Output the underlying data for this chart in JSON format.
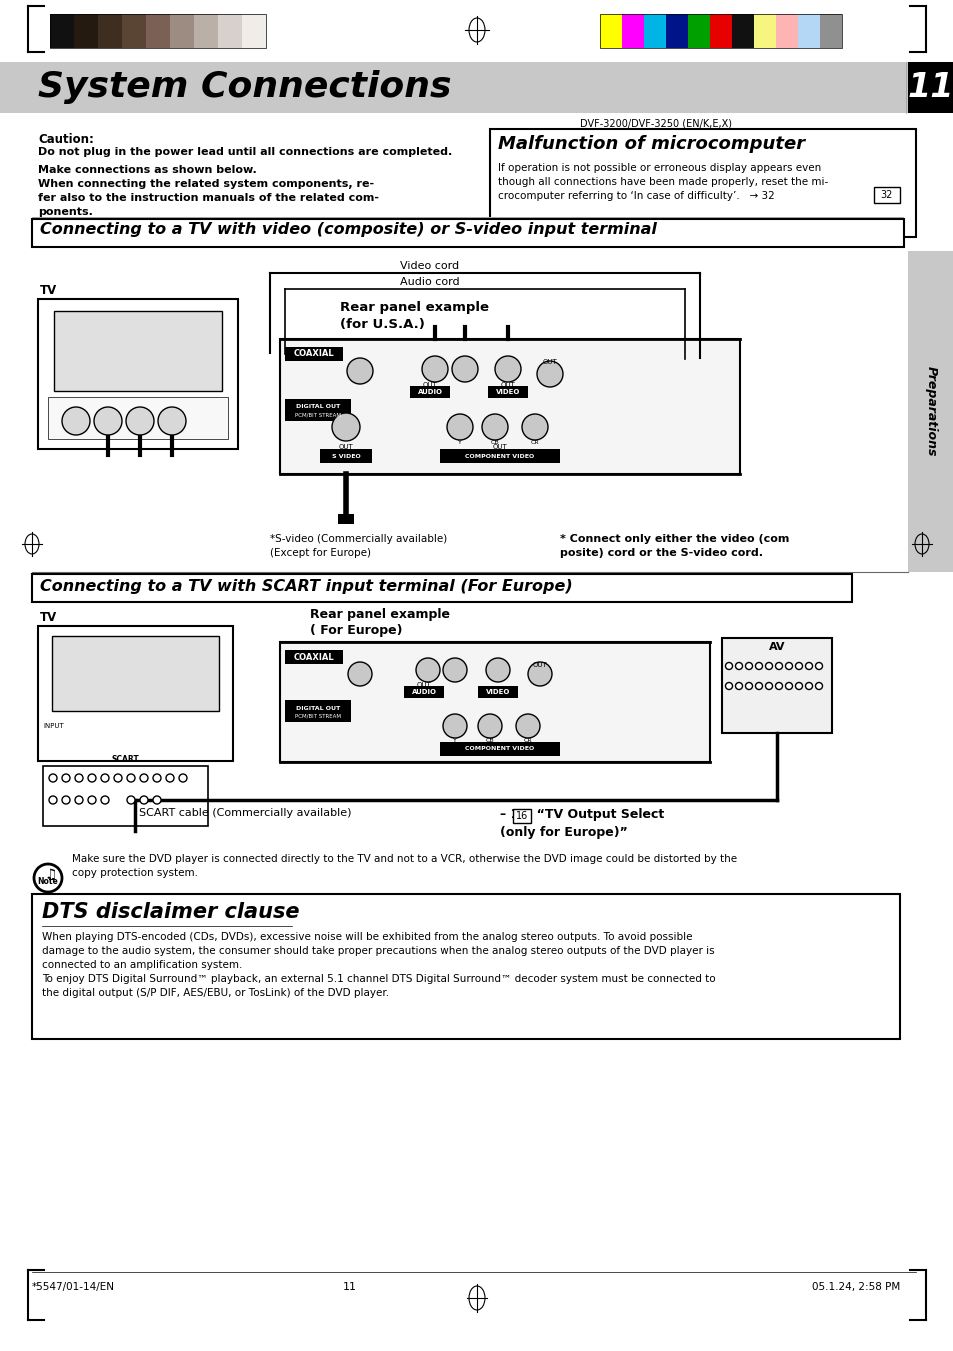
{
  "page_bg": "#ffffff",
  "header_bg": "#c8c8c8",
  "title_text": "System Connections",
  "page_number": "11",
  "model_text": "DVF-3200/DVF-3250 (EN/K,E,X)",
  "caution_title": "Caution:",
  "caution_line1": "Do not plug in the power lead until all connections are completed.",
  "caution_line2": "Make connections as shown below.",
  "caution_line3": "When connecting the related system components, re-",
  "caution_line4": "fer also to the instruction manuals of the related com-",
  "caution_line5": "ponents.",
  "malfunction_title": "Malfunction of microcomputer",
  "malfunction_text1": "If operation is not possible or erroneous display appears even",
  "malfunction_text2": "though all connections have been made properly, reset the mi-",
  "malfunction_text3": "crocomputer referring to ‘In case of difficulty’.   → 32",
  "sec1_title": "Connecting to a TV with video (composite) or S-video input terminal",
  "sec2_title": "Connecting to a TV with SCART input terminal (For Europe)",
  "video_cord": "Video cord",
  "audio_cord": "Audio cord",
  "tv_label": "TV",
  "rear_panel1a": "Rear panel example",
  "rear_panel1b": "(for U.S.A.)",
  "rear_panel2a": "Rear panel example",
  "rear_panel2b": "( For Europe)",
  "svideo_note1": "*S-video (Commercially available)",
  "svideo_note2": "(Except for Europe)",
  "connect_note1": "* Connect only either the video (com",
  "connect_note2": "posite) cord or the S-video cord.",
  "scart_label": "SCART cable (Commercially available)",
  "tv_out1": "– 16  “TV Output Select",
  "tv_out2": "(only for Europe)”",
  "note_text1": "Make sure the DVD player is connected directly to the TV and not to a VCR, otherwise the DVD image could be distorted by the",
  "note_text2": "copy protection system.",
  "dts_title": "DTS disclaimer clause",
  "dts1": "When playing DTS-encoded (CDs, DVDs), excessive noise will be exhibited from the analog stereo outputs. To avoid possible",
  "dts2": "damage to the audio system, the consumer should take proper precautions when the analog stereo outputs of the DVD player is",
  "dts3": "connected to an amplification system.",
  "dts4": "To enjoy DTS Digital Surround™ playback, an external 5.1 channel DTS Digital Surround™ decoder system must be connected to",
  "dts5": "the digital output (S/P DIF, AES/EBU, or TosLink) of the DVD player.",
  "footer_left": "*5547/01-14/EN",
  "footer_center": "11",
  "footer_right": "05.1.24, 2:58 PM",
  "preparations": "Preparations",
  "gray_bars_left": [
    "#111111",
    "#241a10",
    "#3d2e20",
    "#5a4535",
    "#7a6055",
    "#9c8c82",
    "#bab0a8",
    "#d8d0cc",
    "#f0ece8"
  ],
  "color_bars_right": [
    "#ffff00",
    "#ff00ff",
    "#00b4e6",
    "#001489",
    "#00a000",
    "#e60000",
    "#111111",
    "#f5f580",
    "#ffb4b4",
    "#b4d7f5",
    "#909090"
  ]
}
